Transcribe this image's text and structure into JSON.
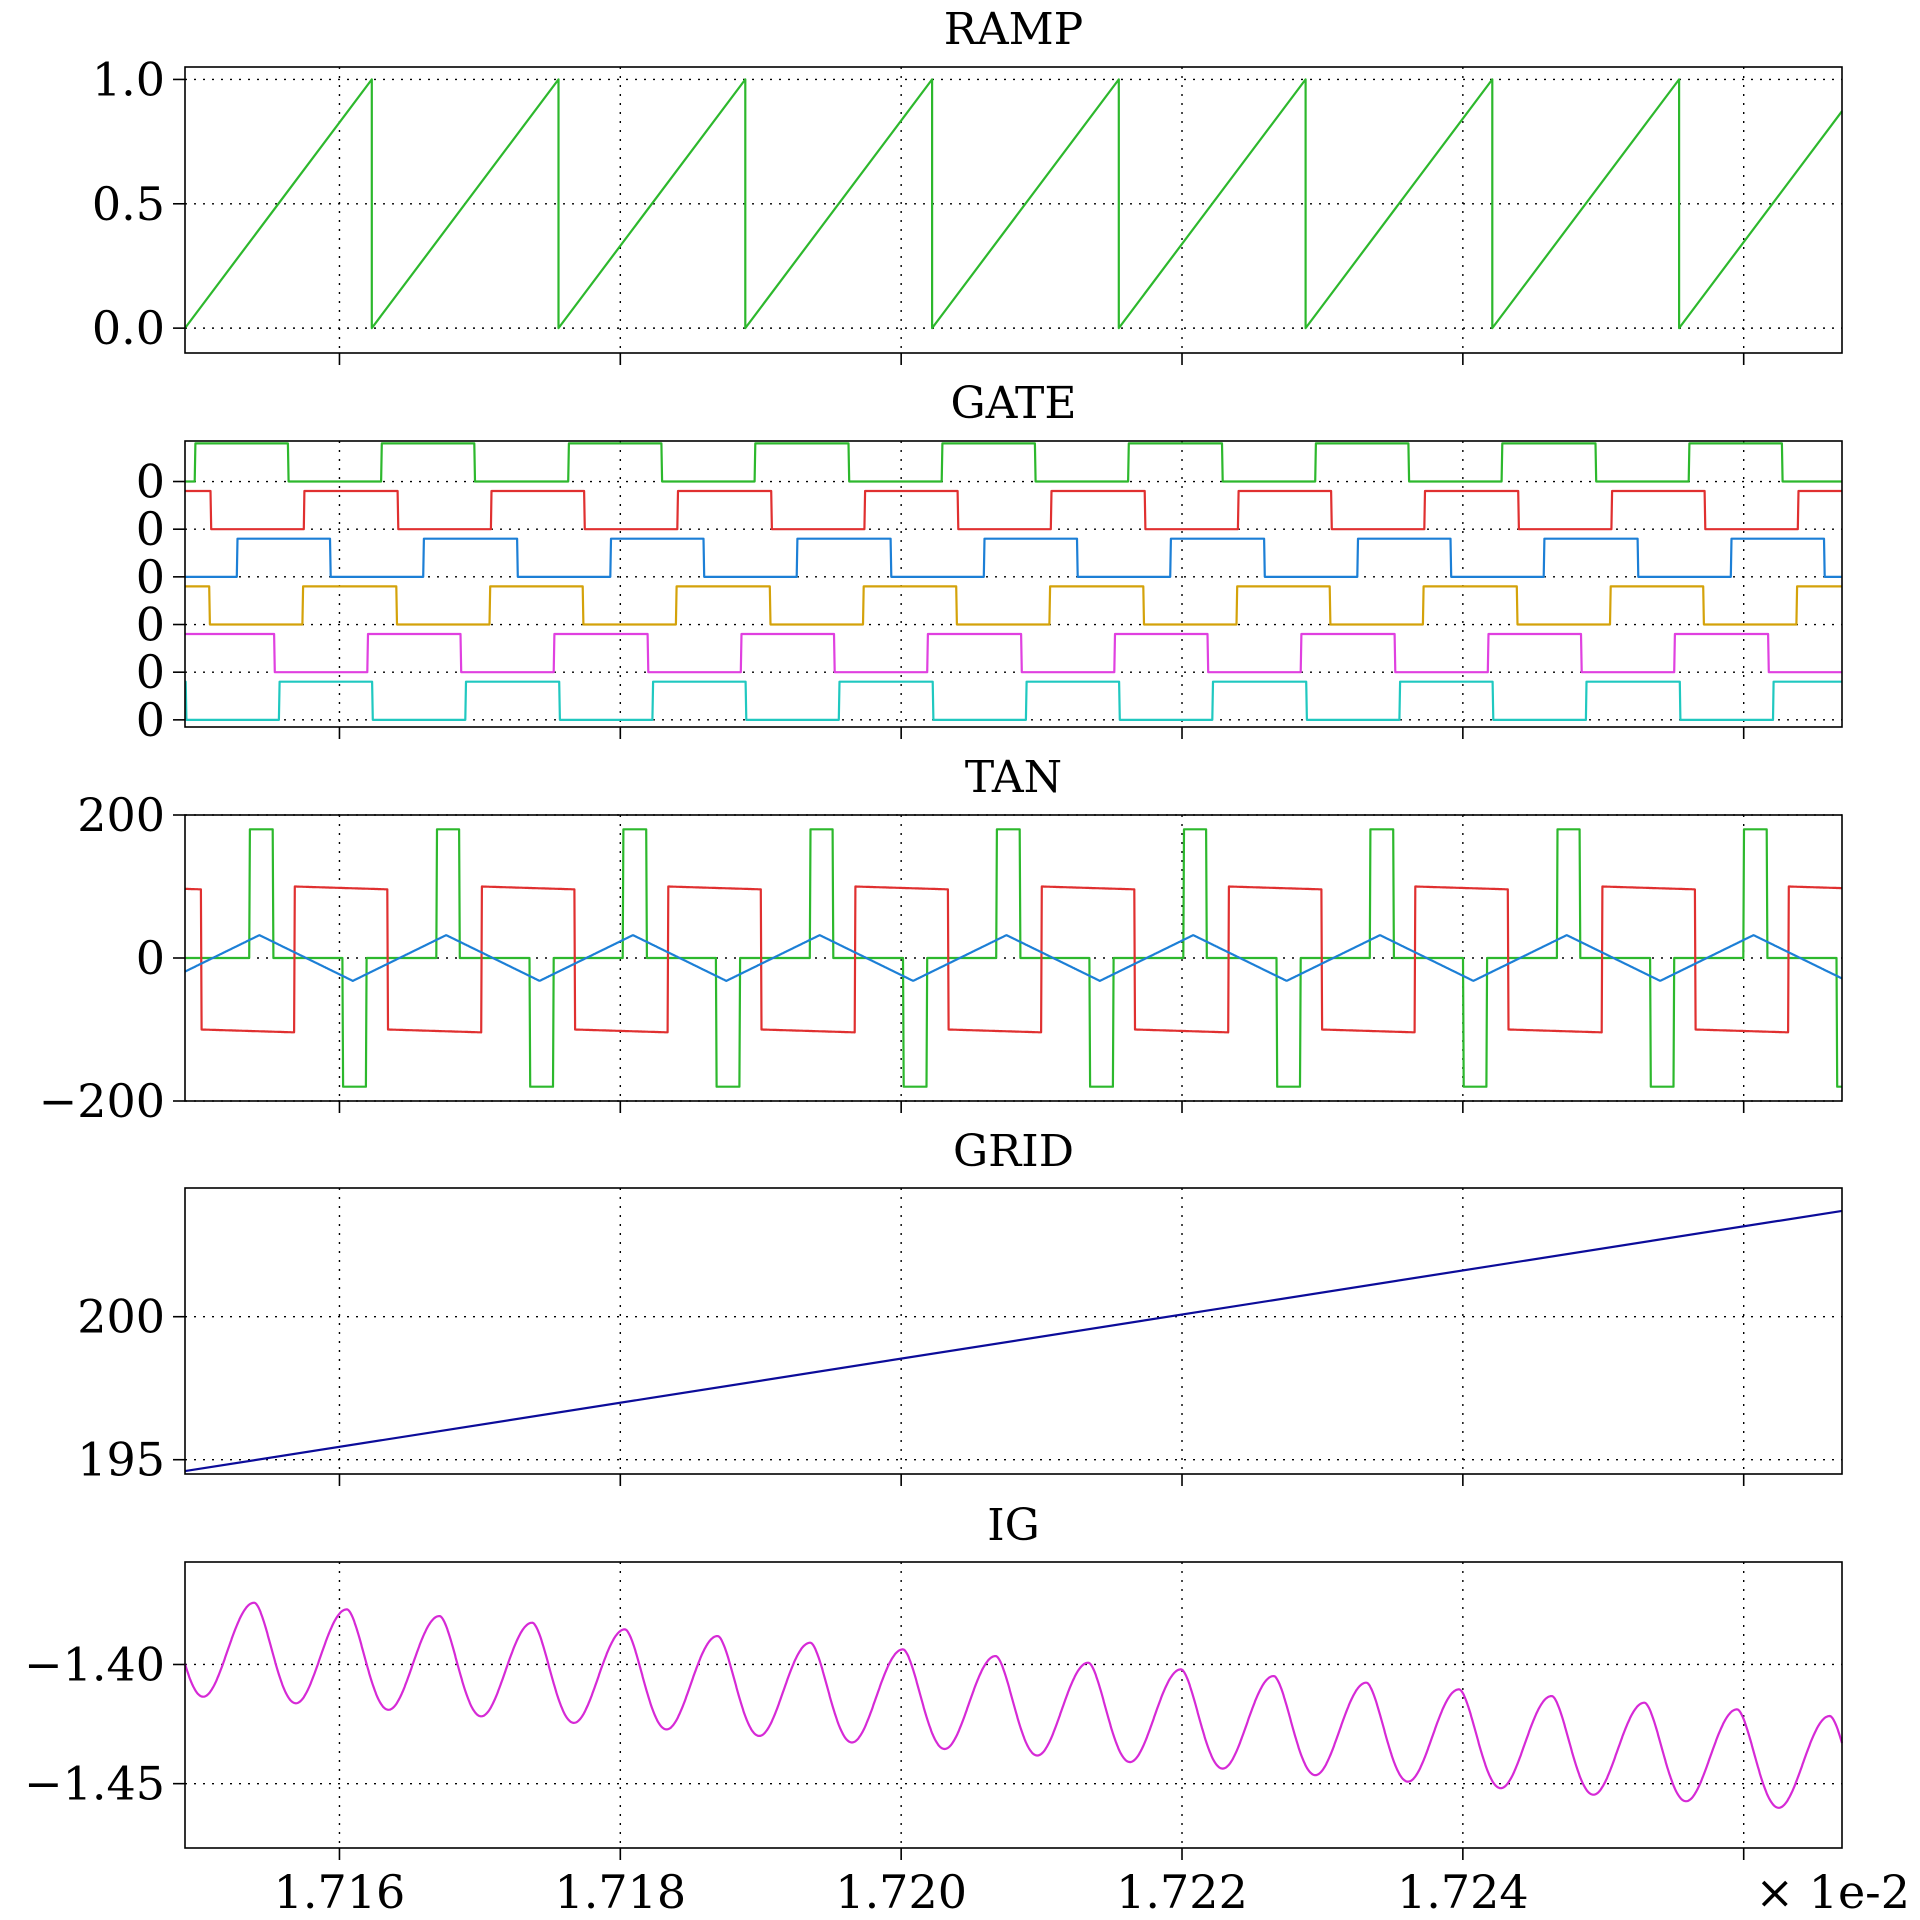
{
  "x_axis": {
    "range": [
      0.017149,
      0.017267
    ],
    "ticks": [
      0.01716,
      0.01718,
      0.0172,
      0.01722,
      0.01724,
      0.01726
    ],
    "tick_labels": [
      "1.716",
      "1.718",
      "1.720",
      "1.722",
      "1.724",
      ""
    ],
    "multiplier_label": "× 1e-2"
  },
  "chart_data": [
    {
      "type": "line",
      "title": "RAMP",
      "ylim": [
        -0.1,
        1.05
      ],
      "yticks": [
        0,
        0.5,
        1
      ],
      "ytick_labels": [
        "0.0",
        "0.5",
        "1.0"
      ],
      "grid": true,
      "wave": {
        "kind": "sawtooth",
        "period": 1.33e-05,
        "phase_start": 0.017149,
        "min": 0,
        "max": 1
      },
      "series": [
        {
          "color": "#2db82d"
        }
      ]
    },
    {
      "type": "line",
      "title": "GATE",
      "ylim": [
        -0.15,
        5.85
      ],
      "yticks": [
        0,
        1,
        2,
        3,
        4,
        5
      ],
      "ytick_labels": [
        "0",
        "0",
        "0",
        "0",
        "0",
        "0"
      ],
      "grid": true,
      "wave": {
        "kind": "pulse",
        "period": 1.33e-05,
        "duty": 0.5,
        "amplitude": 0.8
      },
      "series": [
        {
          "color": "#2db82d",
          "offset": 5,
          "rise": 0.0171497
        },
        {
          "color": "#e03030",
          "offset": 4,
          "rise": 0.0171708
        },
        {
          "color": "#1c7fd6",
          "offset": 3,
          "rise": 0.0171527
        },
        {
          "color": "#d4a20a",
          "offset": 2,
          "rise": 0.0171574
        },
        {
          "color": "#e040e0",
          "offset": 1,
          "rise": 0.017162
        },
        {
          "color": "#20c8c0",
          "offset": 0,
          "rise": 0.0171557
        }
      ]
    },
    {
      "type": "line",
      "title": "TAN",
      "ylim": [
        -200,
        200
      ],
      "yticks": [
        -200,
        0,
        200
      ],
      "ytick_labels": [
        "−200",
        "0",
        "200"
      ],
      "grid": true,
      "wave": {
        "period": 1.33e-05
      },
      "series": [
        {
          "color": "#2db82d",
          "kind": "three-level",
          "high": 180,
          "low": -180,
          "t0": 0.0171536
        },
        {
          "color": "#e03030",
          "kind": "square",
          "high": 100,
          "low": -100,
          "rise": 0.0171568
        },
        {
          "color": "#1c7fd6",
          "kind": "triangle",
          "peak": 32,
          "trough": -32,
          "t_peak": 0.0171543
        }
      ]
    },
    {
      "type": "line",
      "title": "GRID",
      "ylim": [
        194.5,
        204.5
      ],
      "yticks": [
        195,
        200
      ],
      "ytick_labels": [
        "195",
        "200"
      ],
      "grid": true,
      "series": [
        {
          "color": "#0c0c9a",
          "x": [
            0.017149,
            0.017267
          ],
          "y": [
            194.6,
            203.7
          ]
        }
      ]
    },
    {
      "type": "line",
      "title": "IG",
      "ylim": [
        -1.477,
        -1.357
      ],
      "yticks": [
        -1.45,
        -1.4
      ],
      "ytick_labels": [
        "−1.45",
        "−1.40"
      ],
      "grid": true,
      "wave": {
        "kind": "ripple",
        "period": 6.6e-06,
        "start": 0.017149,
        "max_start": -1.372,
        "min_start": -1.413,
        "max_end": -1.422,
        "min_end": -1.462
      },
      "series": [
        {
          "color": "#d62ad6"
        }
      ]
    }
  ]
}
